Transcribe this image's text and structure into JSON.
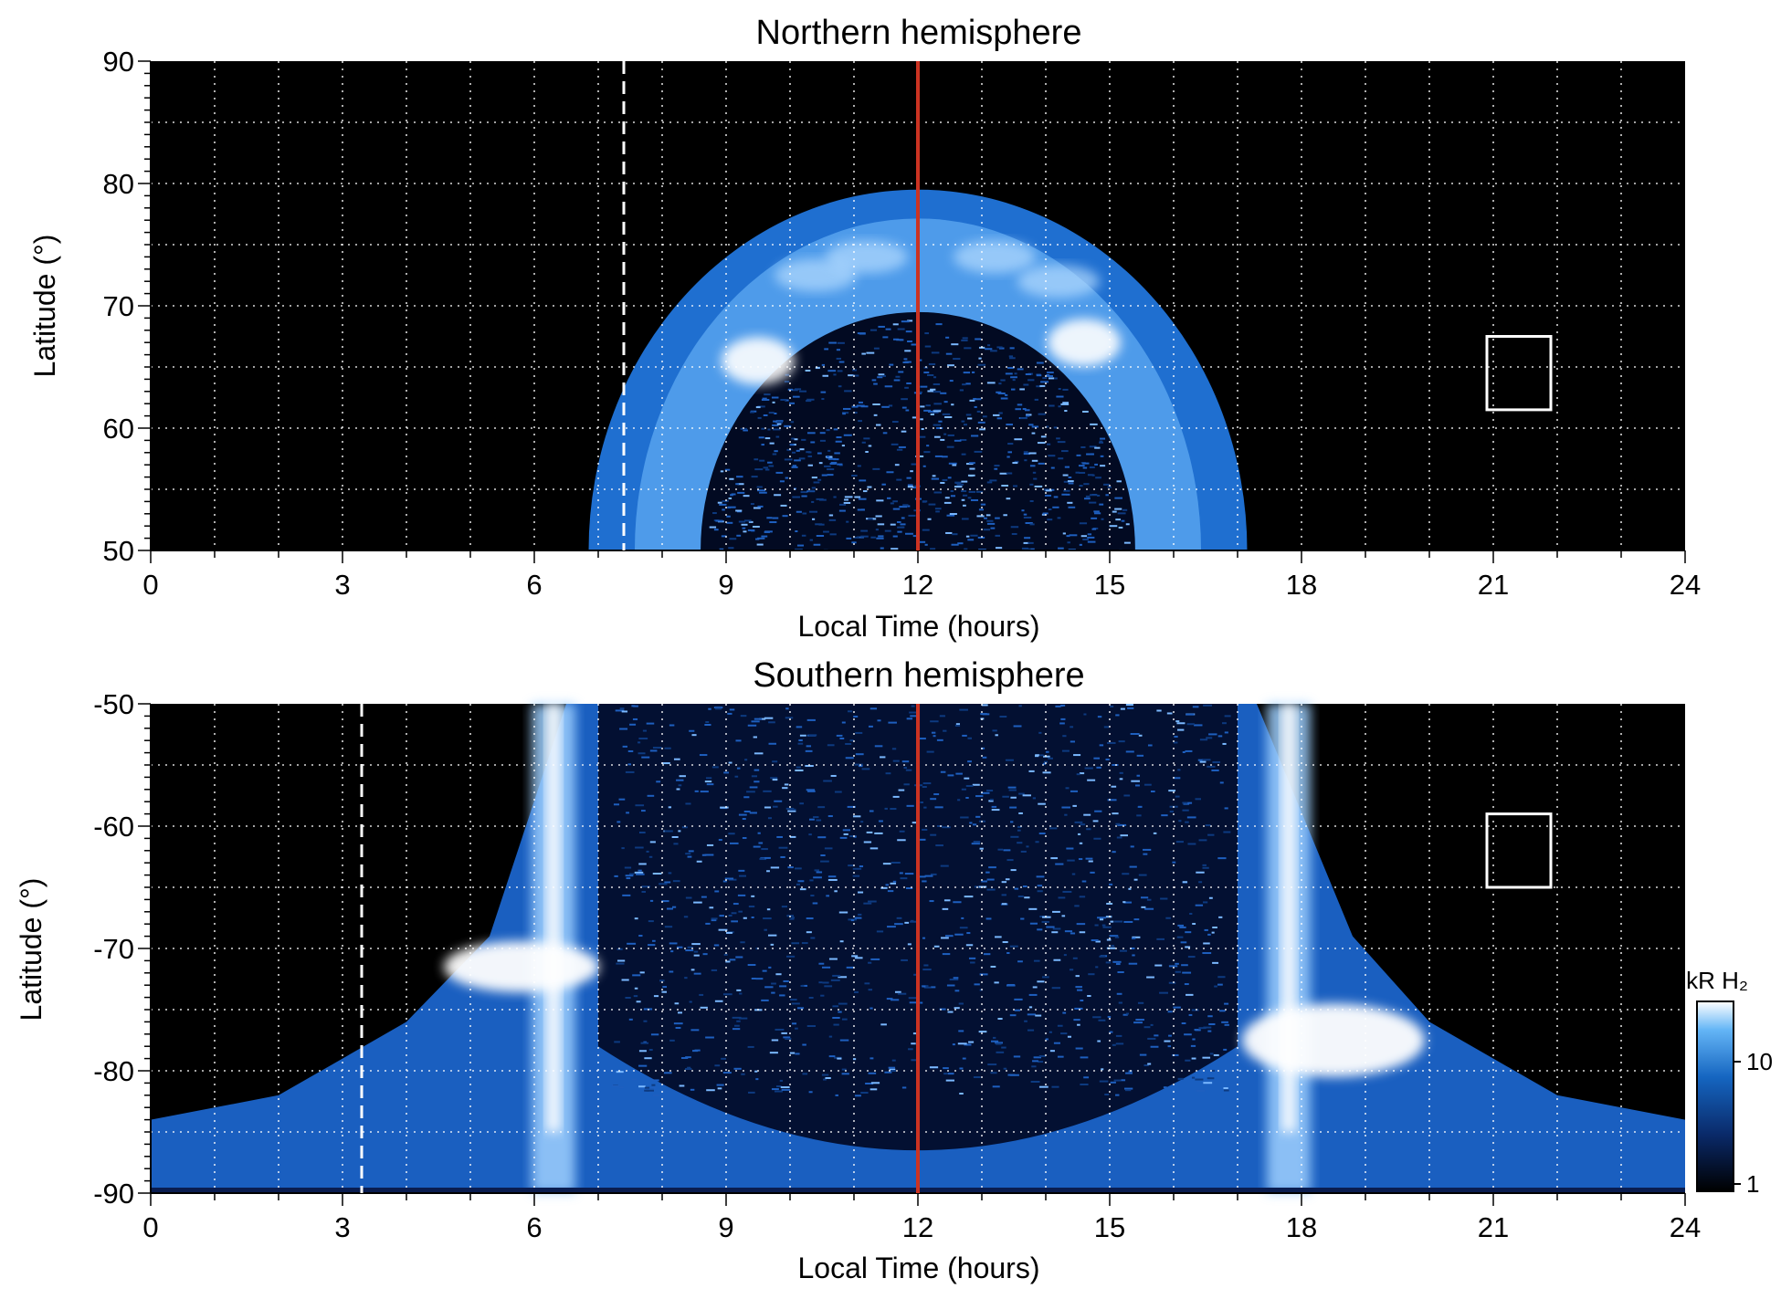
{
  "chart_data": [
    {
      "type": "heatmap",
      "title": "Northern hemisphere",
      "xlabel": "Local Time (hours)",
      "ylabel": "Latitude (°)",
      "xlim": [
        0,
        24
      ],
      "ylim": [
        50,
        90
      ],
      "x_ticks": [
        "0",
        "3",
        "6",
        "9",
        "12",
        "15",
        "18",
        "21",
        "24"
      ],
      "y_ticks": [
        "50",
        "60",
        "70",
        "80",
        "90"
      ],
      "grid": true,
      "reference_line_red": {
        "x": 12
      },
      "reference_line_dashed": {
        "x": 7.4,
        "from_lat": 50,
        "to_lat": 90
      },
      "box": {
        "x0": 20.9,
        "x1": 21.9,
        "y0": 61.5,
        "y1": 67.5
      },
      "auroral_oval": {
        "lt_range": [
          7.0,
          17.3
        ],
        "outer_edge_max_lat": 79.5,
        "inner_edge_max_lat": 69.5,
        "brightest_regions": [
          {
            "lt": 9.5,
            "lat": 65.5
          },
          {
            "lt": 14.6,
            "lat": 67
          }
        ]
      },
      "colors": {
        "accent": "#cc3322",
        "low": "#000000",
        "mid": "#1565c0",
        "high": "#ffffff"
      }
    },
    {
      "type": "heatmap",
      "title": "Southern hemisphere",
      "xlabel": "Local Time (hours)",
      "ylabel": "Latitude (°)",
      "xlim": [
        0,
        24
      ],
      "ylim": [
        -90,
        -50
      ],
      "x_ticks": [
        "0",
        "3",
        "6",
        "9",
        "12",
        "15",
        "18",
        "21",
        "24"
      ],
      "y_ticks": [
        "-90",
        "-80",
        "-70",
        "-60",
        "-50"
      ],
      "grid": true,
      "reference_line_red": {
        "x": 12
      },
      "reference_line_dashed": {
        "x": 3.3,
        "from_lat": -90,
        "to_lat": -50
      },
      "box": {
        "x0": 20.9,
        "x1": 21.9,
        "y0": -65,
        "y1": -59
      },
      "bright_bands": [
        {
          "lt_center": 6.3,
          "lat_from": -90,
          "lat_to": -50
        },
        {
          "lt_center": 17.8,
          "lat_from": -90,
          "lat_to": -50
        }
      ],
      "bright_spots": [
        {
          "lt": 5.8,
          "lat": -71.5
        },
        {
          "lt": 18.5,
          "lat": -77.5
        }
      ],
      "colorbar": {
        "label": "kR H₂",
        "scale": "log",
        "range": [
          1,
          25
        ],
        "ticks": [
          "1",
          "10"
        ]
      },
      "colors": {
        "accent": "#cc3322",
        "low": "#000000",
        "mid": "#1565c0",
        "high": "#ffffff"
      }
    }
  ]
}
